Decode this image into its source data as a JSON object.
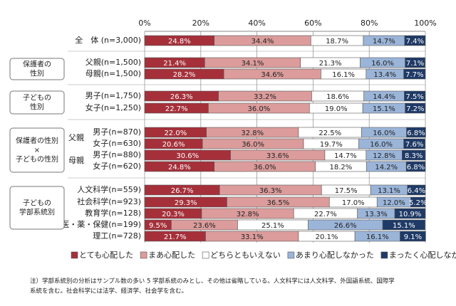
{
  "chart_data": {
    "type": "stacked_bar_horizontal",
    "categories": [
      "全　体 (n=3,000)",
      "父親(n=1,500)",
      "母親(n=1,500)",
      "男子(n=1,750)",
      "女子(n=1,250)",
      "男子(n=870)",
      "女子(n=630)",
      "男子(n=880)",
      "女子(n=620)",
      "人文科学(n=559)",
      "社会科学(n=923)",
      "教育学(n=128)",
      "医・薬・保健(n=199)",
      "理工(n=728)"
    ],
    "groups": [
      [
        "保護者の",
        "性別"
      ],
      [
        "子どもの",
        "性別"
      ],
      [
        "保護者の性別",
        "×",
        "子どもの性別"
      ],
      [
        "子どもの",
        "学部系統別"
      ]
    ],
    "parent_labels": [
      "父親",
      "母親"
    ],
    "series": [
      {
        "name": "とても心配した",
        "color": "#a5303a",
        "values": [
          24.8,
          21.4,
          28.2,
          26.3,
          22.7,
          22.0,
          20.6,
          30.6,
          24.8,
          26.7,
          29.3,
          20.3,
          9.5,
          21.7
        ],
        "value_labels": [
          "24.8%",
          "21.4%",
          "28.2%",
          "26.3%",
          "22.7%",
          "22.0%",
          "20.6%",
          "30.6%",
          "24.8%",
          "26.7%",
          "29.3%",
          "20.3%",
          "9.5%",
          "21.7%"
        ]
      },
      {
        "name": "まあ心配した",
        "color": "#dc9c9c",
        "values": [
          34.4,
          34.1,
          34.6,
          33.2,
          36.0,
          32.8,
          36.0,
          33.6,
          36.0,
          36.3,
          36.5,
          32.8,
          23.6,
          33.1
        ],
        "value_labels": [
          "34.4%",
          "34.1%",
          "34.6%",
          "33.2%",
          "36.0%",
          "32.8%",
          "36.0%",
          "33.6%",
          "36.0%",
          "36.3%",
          "36.5%",
          "32.8%",
          "23.6%",
          "33.1%"
        ]
      },
      {
        "name": "どちらともいえない",
        "color": "#ffffff",
        "values": [
          18.7,
          21.3,
          16.1,
          18.6,
          19.0,
          22.5,
          19.7,
          14.7,
          18.2,
          17.5,
          17.0,
          22.7,
          25.1,
          20.1
        ],
        "value_labels": [
          "18.7%",
          "21.3%",
          "16.1%",
          "18.6%",
          "19.0%",
          "22.5%",
          "19.7%",
          "14.7%",
          "18.2%",
          "17.5%",
          "17.0%",
          "22.7%",
          "25.1%",
          "20.1%"
        ]
      },
      {
        "name": "あまり心配しなかった",
        "color": "#9bb5d9",
        "values": [
          14.7,
          16.0,
          13.4,
          14.4,
          15.1,
          16.0,
          16.0,
          12.8,
          14.2,
          13.1,
          12.0,
          13.3,
          26.6,
          16.1
        ],
        "value_labels": [
          "14.7%",
          "16.0%",
          "13.4%",
          "14.4%",
          "15.1%",
          "16.0%",
          "16.0%",
          "12.8%",
          "14.2%",
          "13.1%",
          "12.0%",
          "13.3%",
          "26.6%",
          "16.1%"
        ]
      },
      {
        "name": "まったく心配しなかった",
        "color": "#1f3a66",
        "values": [
          7.4,
          7.1,
          7.7,
          7.5,
          7.2,
          6.8,
          7.6,
          8.3,
          6.8,
          6.4,
          5.2,
          10.9,
          15.1,
          9.1
        ],
        "value_labels": [
          "7.4%",
          "7.1%",
          "7.7%",
          "7.5%",
          "7.2%",
          "6.8%",
          "7.6%",
          "8.3%",
          "6.8%",
          "6.4%",
          "5.2%",
          "10.9%",
          "15.1%",
          "9.1%"
        ]
      }
    ],
    "xlim": [
      0,
      100
    ],
    "xticks": [
      {
        "value": 0,
        "label": "0%"
      },
      {
        "value": 20,
        "label": "20%"
      },
      {
        "value": 40,
        "label": "40%"
      },
      {
        "value": 60,
        "label": "60%"
      },
      {
        "value": 80,
        "label": "80%"
      },
      {
        "value": 100,
        "label": "100%"
      }
    ],
    "grid": true,
    "note": [
      "注）学部系統別の分析はサンプル数の多い 5 学部系統のみとし、その他は省略している。人文科学には人文科学、外国語系統、国際学",
      "系統を含む。社会科学には法学、経済学、社会学を含む。"
    ]
  }
}
